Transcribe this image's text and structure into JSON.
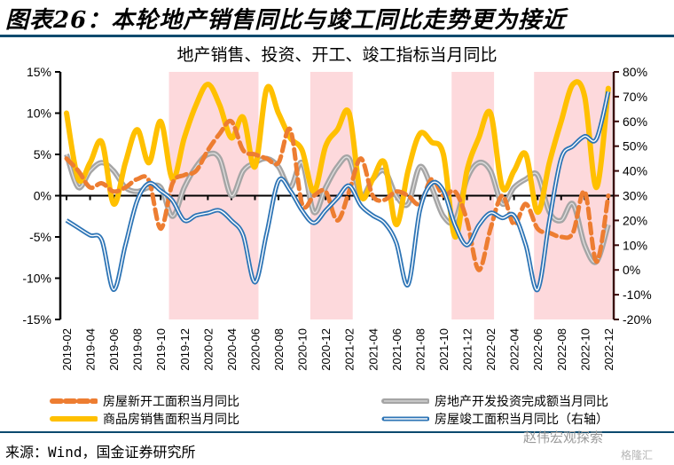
{
  "figure": {
    "title": "图表26：本轮地产销售同比与竣工同比走势更为接近",
    "source": "来源：Wind，国金证券研究所",
    "watermark": "赵伟宏观探索",
    "watermark2": "格隆汇"
  },
  "colors": {
    "rule": "#0b4a6e",
    "shade": "#fdd9dc",
    "new_starts": "#ed7d31",
    "sales": "#ffc000",
    "sales_peak": "#ffa000",
    "investment": "#a5a5a5",
    "completions": "#2e75b6"
  },
  "chart_data": {
    "type": "line",
    "title": "地产销售、投资、开工、竣工指标当月同比",
    "xlabel": "",
    "ylabel": "",
    "y2label": "",
    "ylim": [
      -15,
      15
    ],
    "y2lim": [
      -20,
      80
    ],
    "yticks": [
      "15%",
      "10%",
      "5%",
      "0%",
      "-5%",
      "-10%",
      "-15%"
    ],
    "y2ticks": [
      "80%",
      "70%",
      "60%",
      "50%",
      "40%",
      "30%",
      "20%",
      "10%",
      "0%",
      "-10%",
      "-20%"
    ],
    "x_tick_labels": [
      "2019-02",
      "2019-04",
      "2019-06",
      "2019-08",
      "2019-10",
      "2019-12",
      "2020-02",
      "2020-04",
      "2020-06",
      "2020-08",
      "2020-10",
      "2020-12",
      "2021-02",
      "2021-04",
      "2021-06",
      "2021-08",
      "2021-10",
      "2021-12",
      "2022-02",
      "2022-04",
      "2022-06",
      "2022-08",
      "2022-10",
      "2022-12"
    ],
    "x": [
      "2019-02",
      "2019-03",
      "2019-04",
      "2019-05",
      "2019-06",
      "2019-07",
      "2019-08",
      "2019-09",
      "2019-10",
      "2019-11",
      "2019-12",
      "2020-01",
      "2020-02",
      "2020-03",
      "2020-04",
      "2020-05",
      "2020-06",
      "2020-07",
      "2020-08",
      "2020-09",
      "2020-10",
      "2020-11",
      "2020-12",
      "2021-01",
      "2021-02",
      "2021-03",
      "2021-04",
      "2021-05",
      "2021-06",
      "2021-07",
      "2021-08",
      "2021-09",
      "2021-10",
      "2021-11",
      "2021-12",
      "2022-01",
      "2022-02",
      "2022-03",
      "2022-04",
      "2022-05",
      "2022-06",
      "2022-07",
      "2022-08",
      "2022-09",
      "2022-10",
      "2022-11",
      "2022-12"
    ],
    "shaded_periods": [
      [
        "2019-11",
        "2020-06"
      ],
      [
        "2020-11",
        "2021-02"
      ],
      [
        "2021-11",
        "2022-02"
      ],
      [
        "2022-06",
        "2022-12"
      ]
    ],
    "grid": false,
    "legend_position": "bottom",
    "series": [
      {
        "name": "房屋新开工面积当月同比",
        "axis": "left",
        "style": "dashed",
        "values": [
          4.5,
          3,
          1,
          1.5,
          0.5,
          1,
          2,
          1.8,
          -4,
          1.5,
          2.5,
          3,
          5.5,
          7.5,
          9,
          5.5,
          5,
          4.5,
          4,
          8,
          -1,
          0,
          0.5,
          -3,
          0.5,
          4.5,
          0,
          -0.5,
          0.5,
          0,
          -1,
          2,
          0,
          0.5,
          -3,
          -9,
          -4,
          0,
          -3.5,
          -1,
          -4,
          -4.5,
          -5,
          -4.5,
          0.5,
          -8,
          0
        ]
      },
      {
        "name": "商品房销售面积当月同比",
        "axis": "left",
        "style": "solid",
        "values": [
          10,
          2,
          4,
          6.5,
          -1,
          4,
          8,
          4,
          9,
          2,
          7,
          11,
          13.5,
          11,
          7,
          9.5,
          3.5,
          13,
          10,
          7,
          5.5,
          0.5,
          6,
          8,
          10,
          0,
          2,
          4,
          -3.5,
          3,
          7.5,
          6.5,
          5,
          -5,
          3,
          7,
          10,
          1,
          3,
          5,
          -2,
          4,
          9,
          13.5,
          12,
          1,
          13
        ]
      },
      {
        "name": "房地产开发投资完成额当月同比",
        "axis": "left",
        "style": "double-gray",
        "values": [
          5,
          1,
          3,
          4,
          3,
          1,
          0.5,
          1,
          1,
          -2.5,
          1,
          3.5,
          5,
          4.5,
          0,
          3,
          4,
          4.5,
          3.5,
          1,
          4,
          -2,
          1,
          3.5,
          4.5,
          0,
          2,
          3,
          0,
          -1,
          3.5,
          1,
          -2.5,
          -3,
          2,
          4,
          3,
          -1,
          1,
          2,
          2.5,
          -2,
          -3,
          -1,
          -6,
          -8,
          -3.5
        ]
      },
      {
        "name": "房屋竣工面积当月同比（右轴）",
        "axis": "right",
        "style": "double-blue",
        "values": [
          20,
          17,
          14,
          12,
          -8,
          10,
          28,
          35,
          32,
          28,
          20,
          22,
          23,
          24,
          20,
          14,
          -5,
          15,
          36,
          32,
          24,
          19,
          24,
          29,
          34,
          26,
          22,
          19,
          11,
          -6,
          24,
          35,
          32,
          18,
          10,
          18,
          23,
          21,
          22,
          10,
          -8,
          20,
          45,
          50,
          54,
          53,
          72
        ]
      }
    ]
  },
  "legend": {
    "items": [
      {
        "label": "房屋新开工面积当月同比"
      },
      {
        "label": "房地产开发投资完成额当月同比"
      },
      {
        "label": "商品房销售面积当月同比"
      },
      {
        "label": "房屋竣工面积当月同比（右轴）"
      }
    ]
  }
}
